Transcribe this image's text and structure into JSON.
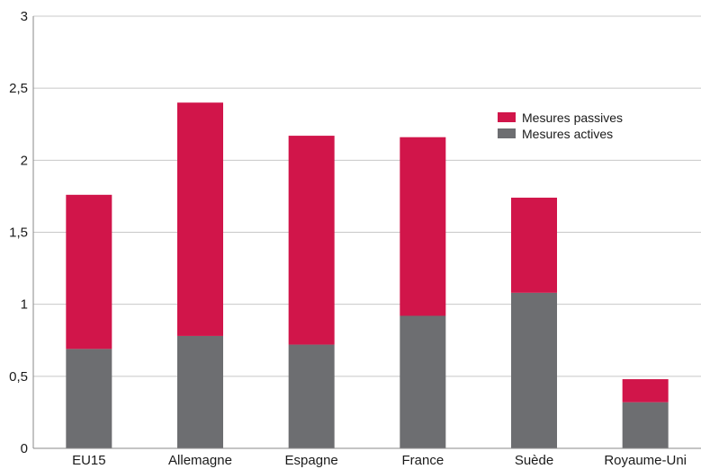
{
  "chart_data": {
    "type": "bar",
    "stacked": true,
    "title": "",
    "xlabel": "",
    "ylabel": "",
    "categories": [
      "EU15",
      "Allemagne",
      "Espagne",
      "France",
      "Suède",
      "Royaume-Uni"
    ],
    "series": [
      {
        "name": "Mesures actives",
        "color": "#6d6e71",
        "values": [
          0.69,
          0.78,
          0.72,
          0.92,
          1.08,
          0.32
        ]
      },
      {
        "name": "Mesures passives",
        "color": "#d1154a",
        "values": [
          1.07,
          1.62,
          1.45,
          1.24,
          0.66,
          0.16
        ]
      }
    ],
    "ylim": [
      0,
      3
    ],
    "yticks": [
      "0",
      "0,5",
      "1",
      "1,5",
      "2",
      "2,5",
      "3"
    ],
    "ytick_values": [
      0,
      0.5,
      1,
      1.5,
      2,
      2.5,
      3
    ],
    "grid": true,
    "legend": {
      "position": "top-right",
      "entries": [
        "Mesures passives",
        "Mesures actives"
      ]
    }
  }
}
